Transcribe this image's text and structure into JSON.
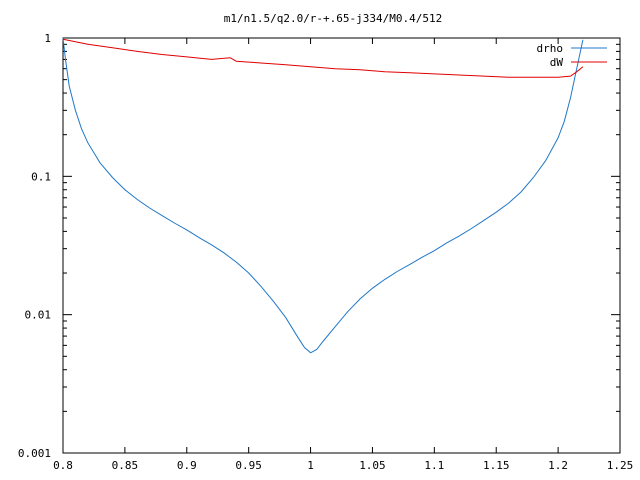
{
  "chart_data": {
    "type": "line",
    "title": "m1/n1.5/q2.0/r-+.65-j334/M0.4/512",
    "xlabel": "",
    "ylabel": "",
    "xlim": [
      0.8,
      1.25
    ],
    "ylim": [
      0.001,
      1
    ],
    "yscale": "log",
    "grid": false,
    "legend_position": "top-right",
    "x_ticks": [
      "0.8",
      "0.85",
      "0.9",
      "0.95",
      "1",
      "1.05",
      "1.1",
      "1.15",
      "1.2",
      "1.25"
    ],
    "y_ticks": [
      "0.001",
      "0.01",
      "0.1",
      "1"
    ],
    "series": [
      {
        "name": "drho",
        "color": "#1f78c8",
        "points": [
          [
            0.8,
            1.0
          ],
          [
            0.802,
            0.7
          ],
          [
            0.805,
            0.45
          ],
          [
            0.81,
            0.3
          ],
          [
            0.815,
            0.22
          ],
          [
            0.82,
            0.175
          ],
          [
            0.83,
            0.125
          ],
          [
            0.84,
            0.098
          ],
          [
            0.85,
            0.08
          ],
          [
            0.86,
            0.068
          ],
          [
            0.87,
            0.059
          ],
          [
            0.88,
            0.052
          ],
          [
            0.89,
            0.046
          ],
          [
            0.9,
            0.041
          ],
          [
            0.91,
            0.036
          ],
          [
            0.92,
            0.032
          ],
          [
            0.93,
            0.028
          ],
          [
            0.94,
            0.024
          ],
          [
            0.95,
            0.02
          ],
          [
            0.96,
            0.016
          ],
          [
            0.97,
            0.0125
          ],
          [
            0.98,
            0.0095
          ],
          [
            0.99,
            0.0068
          ],
          [
            0.995,
            0.0058
          ],
          [
            1.0,
            0.0053
          ],
          [
            1.005,
            0.0056
          ],
          [
            1.01,
            0.0064
          ],
          [
            1.02,
            0.0082
          ],
          [
            1.03,
            0.0105
          ],
          [
            1.04,
            0.013
          ],
          [
            1.05,
            0.0155
          ],
          [
            1.06,
            0.018
          ],
          [
            1.07,
            0.0205
          ],
          [
            1.08,
            0.023
          ],
          [
            1.09,
            0.026
          ],
          [
            1.1,
            0.029
          ],
          [
            1.11,
            0.033
          ],
          [
            1.12,
            0.037
          ],
          [
            1.13,
            0.042
          ],
          [
            1.14,
            0.048
          ],
          [
            1.15,
            0.055
          ],
          [
            1.16,
            0.064
          ],
          [
            1.17,
            0.077
          ],
          [
            1.18,
            0.098
          ],
          [
            1.19,
            0.13
          ],
          [
            1.2,
            0.19
          ],
          [
            1.205,
            0.25
          ],
          [
            1.21,
            0.37
          ],
          [
            1.215,
            0.6
          ],
          [
            1.22,
            0.97
          ]
        ]
      },
      {
        "name": "dW",
        "color": "#e00000",
        "points": [
          [
            0.8,
            0.98
          ],
          [
            0.82,
            0.9
          ],
          [
            0.84,
            0.85
          ],
          [
            0.86,
            0.8
          ],
          [
            0.88,
            0.76
          ],
          [
            0.9,
            0.73
          ],
          [
            0.92,
            0.7
          ],
          [
            0.935,
            0.72
          ],
          [
            0.94,
            0.68
          ],
          [
            0.95,
            0.67
          ],
          [
            0.96,
            0.66
          ],
          [
            0.98,
            0.64
          ],
          [
            1.0,
            0.62
          ],
          [
            1.02,
            0.6
          ],
          [
            1.04,
            0.59
          ],
          [
            1.05,
            0.58
          ],
          [
            1.06,
            0.57
          ],
          [
            1.08,
            0.56
          ],
          [
            1.1,
            0.55
          ],
          [
            1.12,
            0.54
          ],
          [
            1.14,
            0.53
          ],
          [
            1.16,
            0.52
          ],
          [
            1.18,
            0.52
          ],
          [
            1.2,
            0.52
          ],
          [
            1.21,
            0.53
          ],
          [
            1.215,
            0.57
          ],
          [
            1.22,
            0.62
          ]
        ]
      }
    ]
  }
}
